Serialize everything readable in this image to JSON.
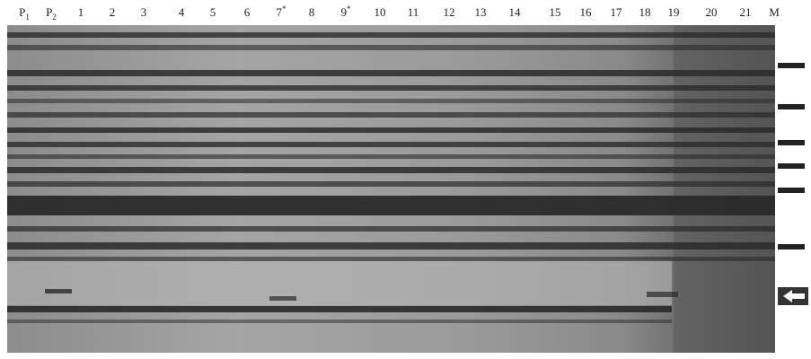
{
  "lanes": [
    {
      "label": "P",
      "sub": "1"
    },
    {
      "label": "P",
      "sub": "2"
    },
    {
      "label": "1"
    },
    {
      "label": "2"
    },
    {
      "label": "3"
    },
    {
      "label": "4"
    },
    {
      "label": "5"
    },
    {
      "label": "6"
    },
    {
      "label": "7",
      "sup": "*"
    },
    {
      "label": "8"
    },
    {
      "label": "9",
      "sup": "*"
    },
    {
      "label": "10"
    },
    {
      "label": "11"
    },
    {
      "label": "12"
    },
    {
      "label": "13"
    },
    {
      "label": "14"
    },
    {
      "label": "15"
    },
    {
      "label": "16"
    },
    {
      "label": "17"
    },
    {
      "label": "18"
    },
    {
      "label": "19"
    },
    {
      "label": "20"
    },
    {
      "label": "21"
    },
    {
      "label": "M"
    }
  ]
}
